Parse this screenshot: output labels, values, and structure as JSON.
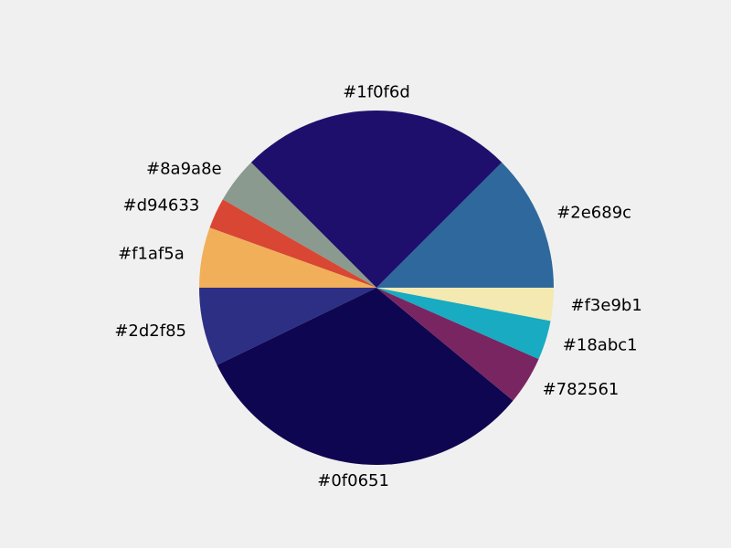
{
  "chart_data": {
    "type": "pie",
    "start_angle_deg": 0,
    "direction": "counterclockwise",
    "slices": [
      {
        "label": "#2e689c",
        "value": 12.5,
        "color": "#2e689c"
      },
      {
        "label": "#1f0f6d",
        "value": 25.0,
        "color": "#1f0f6d"
      },
      {
        "label": "#8a9a8e",
        "value": 4.2,
        "color": "#8a9a8e"
      },
      {
        "label": "#d94633",
        "value": 2.8,
        "color": "#d94633"
      },
      {
        "label": "#f1af5a",
        "value": 5.5,
        "color": "#f1af5a"
      },
      {
        "label": "#2d2f85",
        "value": 7.2,
        "color": "#2d2f85"
      },
      {
        "label": "#0f0651",
        "value": 31.8,
        "color": "#0f0651"
      },
      {
        "label": "#782561",
        "value": 4.4,
        "color": "#782561"
      },
      {
        "label": "#18abc1",
        "value": 3.6,
        "color": "#18abc1"
      },
      {
        "label": "#f3e9b1",
        "value": 3.0,
        "color": "#f3e9b1"
      }
    ]
  }
}
